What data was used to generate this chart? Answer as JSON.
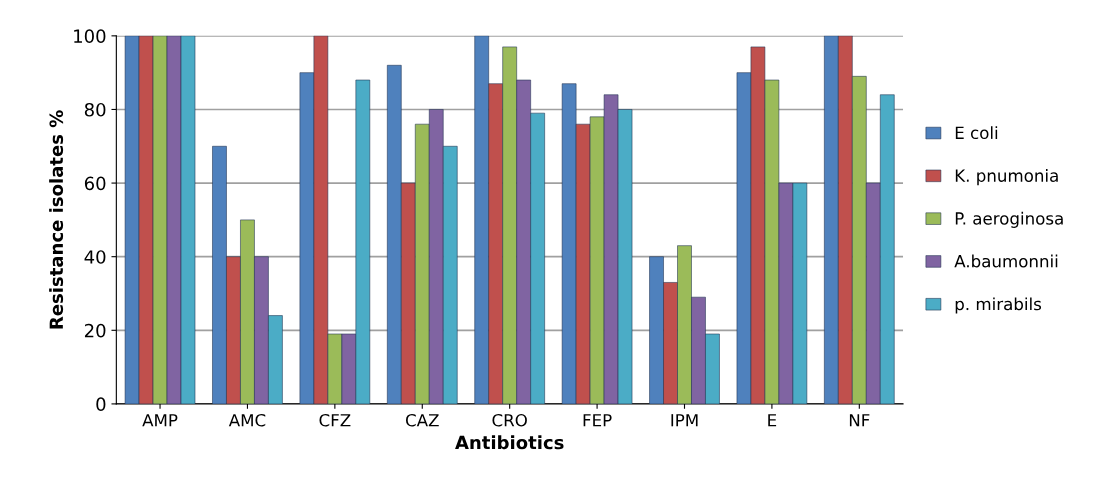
{
  "chart_data": {
    "type": "bar",
    "xlabel": "Antibiotics",
    "ylabel": "Resistance isolates %",
    "categories": [
      "AMP",
      "AMC",
      "CFZ",
      "CAZ",
      "CRO",
      "FEP",
      "IPM",
      "E",
      "NF"
    ],
    "series": [
      {
        "name": "E coli",
        "color": "#4f81bd",
        "values": [
          100,
          70,
          90,
          92,
          100,
          87,
          40,
          90,
          100
        ]
      },
      {
        "name": "K. pnumonia",
        "color": "#c0504d",
        "values": [
          100,
          40,
          100,
          60,
          87,
          76,
          33,
          97,
          100
        ]
      },
      {
        "name": "P. aeroginosa",
        "color": "#9bbb59",
        "values": [
          100,
          50,
          19,
          76,
          97,
          78,
          43,
          88,
          89
        ]
      },
      {
        "name": "A.baumonnii",
        "color": "#8064a2",
        "values": [
          100,
          40,
          19,
          80,
          88,
          84,
          29,
          60,
          60
        ]
      },
      {
        "name": "p. mirabils",
        "color": "#4bacc6",
        "values": [
          100,
          24,
          88,
          70,
          79,
          80,
          19,
          60,
          84
        ]
      }
    ],
    "ylim": [
      0,
      100
    ],
    "yticks": [
      0,
      20,
      40,
      60,
      80,
      100
    ],
    "grid": "y",
    "legend": "right"
  }
}
